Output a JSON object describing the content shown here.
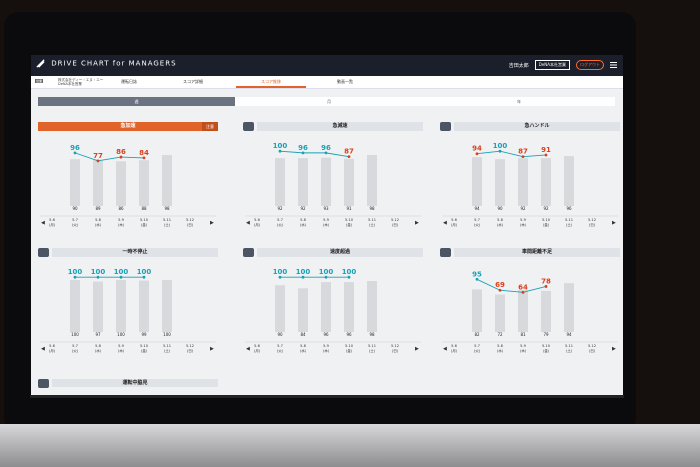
{
  "app": {
    "title": "DRIVE CHART for MANAGERS"
  },
  "header": {
    "user_name": "吉田太郎",
    "office_button": "DeNA本社営業",
    "logout_button": "ログアウト"
  },
  "nav": {
    "badge": "営業",
    "company_line1": "株式会社ディー・エヌ・エー",
    "company_line2": "DeNA本社営業",
    "tabs": [
      "運転日誌",
      "スコア詳細",
      "スコア推移",
      "動画一覧"
    ],
    "active_index": 2
  },
  "periods": {
    "options": [
      "週",
      "月",
      "年"
    ],
    "selected": "週"
  },
  "colors": {
    "good": "#17a2b8",
    "bad": "#d9411e",
    "alert": "#e0642a",
    "bar": "#d7d9dd"
  },
  "date_labels": [
    "5.6\n(月)",
    "5.7\n(火)",
    "5.8\n(水)",
    "5.9\n(木)",
    "5.10\n(金)",
    "5.11\n(土)",
    "5.12\n(日)"
  ],
  "cards": [
    {
      "title": "急加速",
      "icon": "car-accel-icon",
      "alert": true,
      "extra": "注意",
      "line": [
        96,
        77,
        86,
        84
      ],
      "line_colors": [
        "good",
        "bad",
        "bad",
        "bad"
      ],
      "bars": [
        "",
        "90",
        "89",
        "86",
        "88",
        "98",
        ""
      ]
    },
    {
      "title": "急減速",
      "icon": "car-brake-icon",
      "alert": false,
      "line": [
        100,
        96,
        96,
        87
      ],
      "line_colors": [
        "good",
        "good",
        "good",
        "bad"
      ],
      "bars": [
        "",
        "92",
        "92",
        "93",
        "91",
        "98",
        ""
      ]
    },
    {
      "title": "急ハンドル",
      "icon": "steering-icon",
      "alert": false,
      "line": [
        94,
        100,
        87,
        91
      ],
      "line_colors": [
        "bad",
        "good",
        "bad",
        "bad"
      ],
      "bars": [
        "",
        "94",
        "90",
        "92",
        "92",
        "96",
        ""
      ]
    },
    {
      "title": "一時不停止",
      "icon": "stop-sign-icon",
      "alert": false,
      "line": [
        100,
        100,
        100,
        100
      ],
      "line_colors": [
        "good",
        "good",
        "good",
        "good"
      ],
      "bars": [
        "",
        "100",
        "97",
        "100",
        "99",
        "100",
        ""
      ]
    },
    {
      "title": "速度超過",
      "icon": "speedometer-icon",
      "alert": false,
      "line": [
        100,
        100,
        100,
        100
      ],
      "line_colors": [
        "good",
        "good",
        "good",
        "good"
      ],
      "bars": [
        "",
        "90",
        "84",
        "96",
        "96",
        "98",
        ""
      ]
    },
    {
      "title": "車間距離不足",
      "icon": "car-distance-icon",
      "alert": false,
      "line": [
        95,
        69,
        64,
        78
      ],
      "line_colors": [
        "good",
        "bad",
        "bad",
        "bad"
      ],
      "bars": [
        "",
        "82",
        "72",
        "81",
        "79",
        "94",
        ""
      ]
    }
  ],
  "lower_card": {
    "title": "運転中脇見",
    "icon": "eye-icon"
  }
}
